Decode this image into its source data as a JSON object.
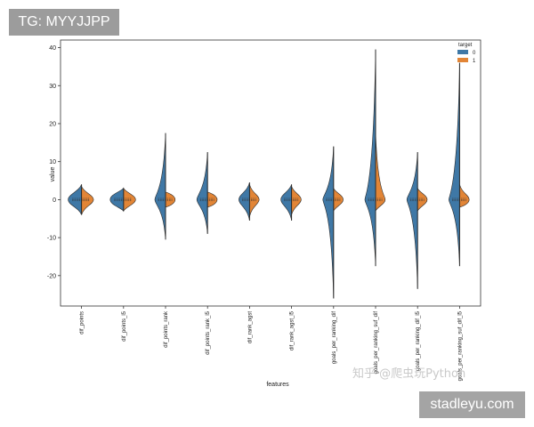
{
  "badges": {
    "tg": "TG: MYYJJPP",
    "site": "stadleyu.com"
  },
  "watermark": "知乎 @爬虫玩Python",
  "colors": {
    "target0": "#3f78a6",
    "target1": "#e28536",
    "line": "#2b2b2b"
  },
  "chart_data": {
    "type": "violin",
    "split": true,
    "xlabel": "features",
    "ylabel": "value",
    "ylim": [
      -28,
      42
    ],
    "yticks": [
      -20,
      -10,
      0,
      10,
      20,
      30,
      40
    ],
    "grid": false,
    "legend": {
      "title": "target",
      "placement": "top-right",
      "entries": [
        "0",
        "1"
      ]
    },
    "categories": [
      "dif_points",
      "dif_points_l5",
      "dif_points_rank",
      "dif_points_rank_l5",
      "dif_rank_agst",
      "dif_rank_agst_l5",
      "goals_per_ranking_dif",
      "goals_per_ranking_suf_dif",
      "goals_per_ranking_dif_l5",
      "goals_per_ranking_suf_dif_l5"
    ],
    "series": [
      {
        "name": "0",
        "min": [
          -4,
          -3,
          -10.5,
          -9,
          -5.5,
          -5.5,
          -26,
          -17.5,
          -23.5,
          -17.5
        ],
        "max": [
          4,
          3,
          17.5,
          12.5,
          4.5,
          4,
          14,
          39.5,
          12.5,
          36
        ]
      },
      {
        "name": "1",
        "min": [
          -4,
          -3,
          -2,
          -2,
          -4.5,
          -4,
          -3,
          -3,
          -3,
          -2
        ],
        "max": [
          3.5,
          3,
          2,
          2,
          4,
          3.5,
          3,
          18,
          3,
          4
        ]
      }
    ]
  }
}
